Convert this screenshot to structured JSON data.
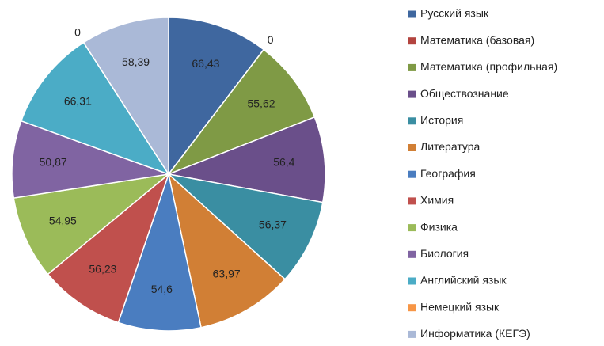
{
  "chart_data": {
    "type": "pie",
    "categories": [
      "Русский язык",
      "Математика (базовая)",
      "Математика (профильная)",
      "Обществознание",
      "История",
      "Литература",
      "География",
      "Химия",
      "Физика",
      "Биология",
      "Английский язык",
      "Немецкий язык",
      "Информатика (КЕГЭ)"
    ],
    "values": [
      66.43,
      0,
      55.62,
      56.4,
      56.37,
      63.97,
      54.6,
      56.23,
      54.95,
      50.87,
      66.31,
      0,
      58.39
    ],
    "value_labels": [
      "66,43",
      "0",
      "55,62",
      "56,4",
      "56,37",
      "63,97",
      "54,6",
      "56,23",
      "54,95",
      "50,87",
      "66,31",
      "0",
      "58,39"
    ],
    "colors": [
      "#3f679f",
      "#b3443f",
      "#7f9a45",
      "#6a4f8a",
      "#3a8ea2",
      "#d17f35",
      "#4a7dc0",
      "#c0504d",
      "#9bbb59",
      "#8064a2",
      "#4bacc6",
      "#f79646",
      "#aab9d7"
    ],
    "legend": "right"
  }
}
